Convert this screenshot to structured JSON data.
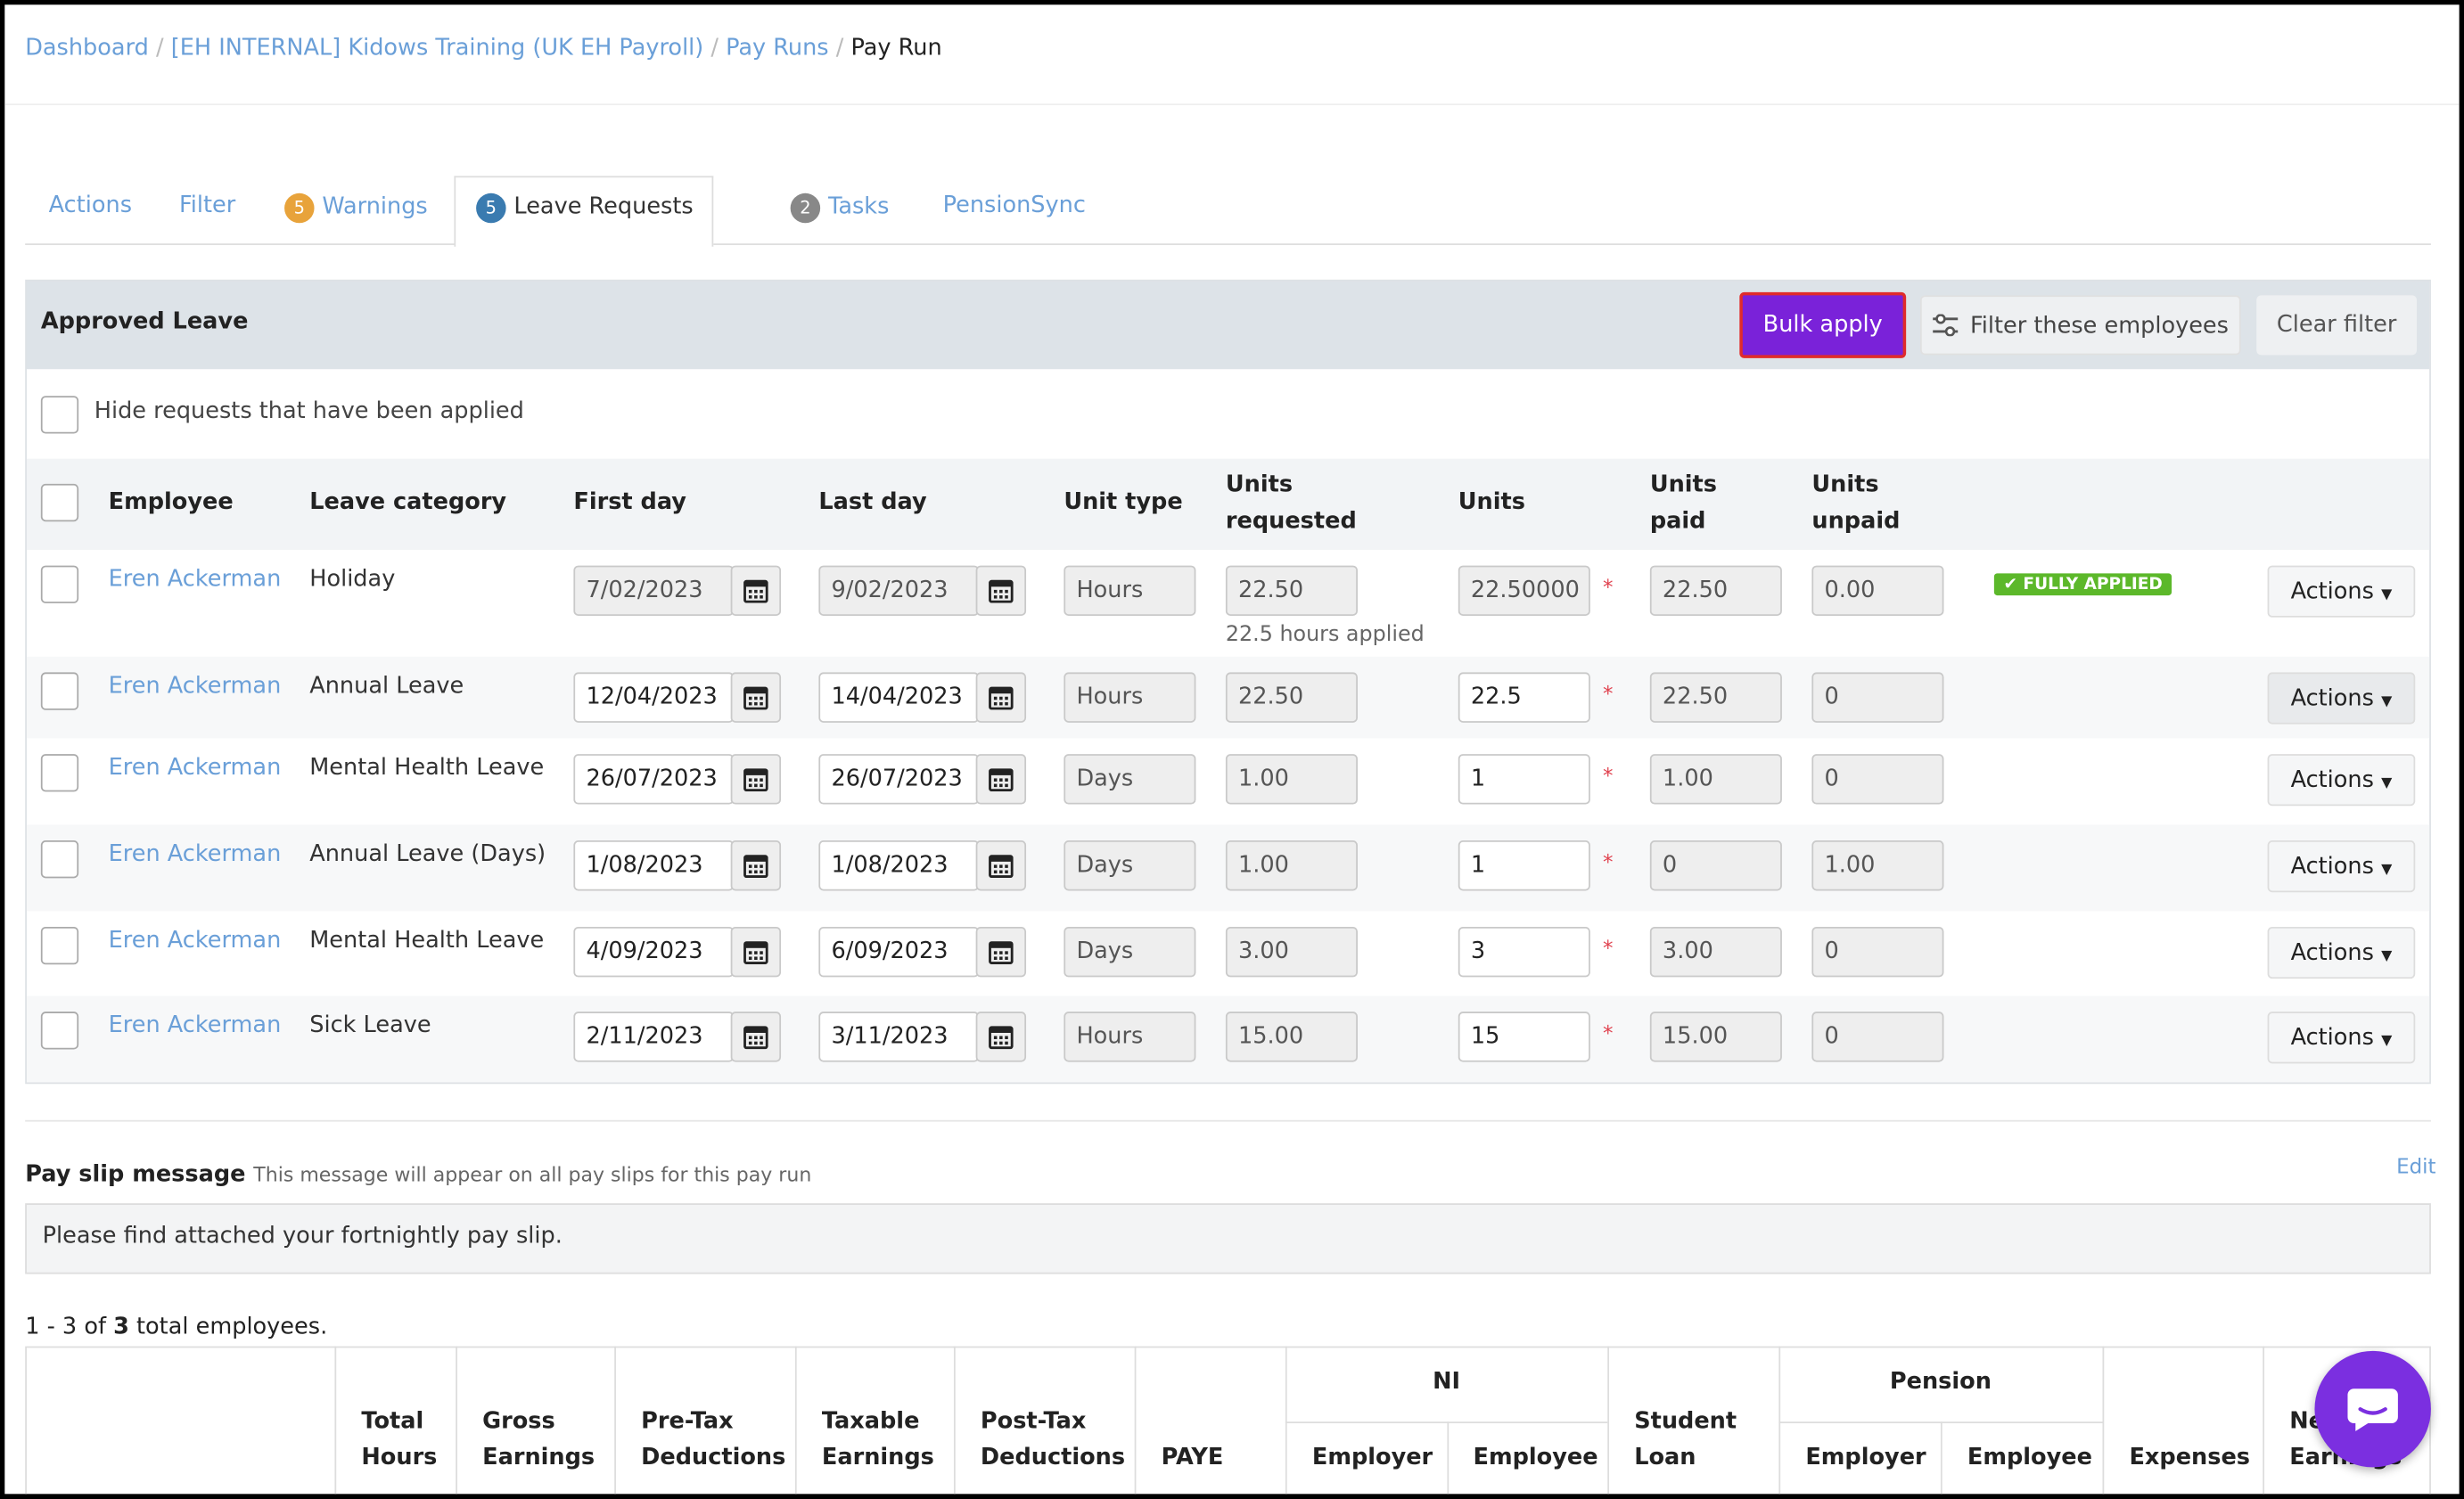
{
  "breadcrumb": [
    "Dashboard",
    "[EH INTERNAL] Kidows Training (UK EH Payroll)",
    "Pay Runs",
    "Pay Run"
  ],
  "tabs": [
    {
      "label": "Actions"
    },
    {
      "label": "Filter"
    },
    {
      "badge": 5,
      "label": "Warnings"
    },
    {
      "badge": 5,
      "label": "Leave Requests"
    },
    {
      "badge": 2,
      "label": "Tasks"
    },
    {
      "label": "PensionSync"
    }
  ],
  "panel": {
    "title": "Approved Leave",
    "buttons": [
      "Bulk apply",
      "Filter these employees",
      "Clear filter"
    ],
    "hide_label": "Hide requests that have been applied",
    "columns": [
      "Employee",
      "Leave category",
      "First day",
      "Last day",
      "Unit type",
      "Units requested",
      "Units",
      "Units paid",
      "Units unpaid"
    ],
    "rows": [
      {
        "employee": "Eren Ackerman",
        "category": "Holiday",
        "first": "7/02/2023",
        "last": "9/02/2023",
        "unit_type": "Hours",
        "requested": "22.50",
        "units": "22.50000",
        "paid": "22.50",
        "unpaid": "0.00",
        "note": "22.5 hours applied",
        "status": "FULLY APPLIED",
        "action": "Actions"
      },
      {
        "employee": "Eren Ackerman",
        "category": "Annual Leave",
        "first": "12/04/2023",
        "last": "14/04/2023",
        "unit_type": "Hours",
        "requested": "22.50",
        "units": "22.5",
        "paid": "22.50",
        "unpaid": "0",
        "action": "Actions"
      },
      {
        "employee": "Eren Ackerman",
        "category": "Mental Health Leave",
        "first": "26/07/2023",
        "last": "26/07/2023",
        "unit_type": "Days",
        "requested": "1.00",
        "units": "1",
        "paid": "1.00",
        "unpaid": "0",
        "action": "Actions"
      },
      {
        "employee": "Eren Ackerman",
        "category": "Annual Leave (Days)",
        "first": "1/08/2023",
        "last": "1/08/2023",
        "unit_type": "Days",
        "requested": "1.00",
        "units": "1",
        "paid": "0",
        "unpaid": "1.00",
        "action": "Actions"
      },
      {
        "employee": "Eren Ackerman",
        "category": "Mental Health Leave",
        "first": "4/09/2023",
        "last": "6/09/2023",
        "unit_type": "Days",
        "requested": "3.00",
        "units": "3",
        "paid": "3.00",
        "unpaid": "0",
        "action": "Actions"
      },
      {
        "employee": "Eren Ackerman",
        "category": "Sick Leave",
        "first": "2/11/2023",
        "last": "3/11/2023",
        "unit_type": "Hours",
        "requested": "15.00",
        "units": "15",
        "paid": "15.00",
        "unpaid": "0",
        "action": "Actions"
      }
    ]
  },
  "payslip": {
    "title": "Pay slip message",
    "hint": "This message will appear on all pay slips for this pay run",
    "edit": "Edit",
    "message": "Please find attached your fortnightly pay slip."
  },
  "pagination": {
    "range": "1 - 3 of",
    "total": 3,
    "suffix": "total employees."
  },
  "summary_columns": [
    {
      "label": "Total Hours"
    },
    {
      "label": "Gross Earnings"
    },
    {
      "label": "Pre-Tax Deductions"
    },
    {
      "label": "Taxable Earnings"
    },
    {
      "label": "Post-Tax Deductions"
    },
    {
      "label": "PAYE"
    },
    {
      "label": "NI",
      "sub": [
        "Employer",
        "Employee"
      ]
    },
    {
      "label": "Student Loan"
    },
    {
      "label": "Pension",
      "sub": [
        "Employer",
        "Employee"
      ]
    },
    {
      "label": "Expenses"
    },
    {
      "label": "Net Earnings"
    }
  ]
}
